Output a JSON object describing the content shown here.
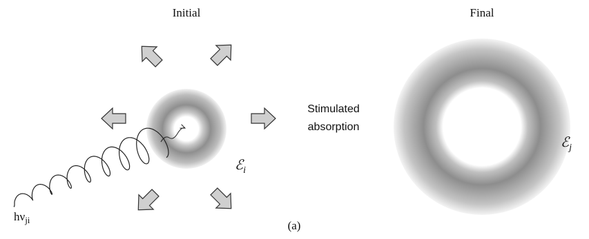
{
  "panels": {
    "initial": {
      "title": "Initial",
      "energy": {
        "symbol": "ℰ",
        "subscript": "i"
      }
    },
    "final": {
      "title": "Final",
      "energy": {
        "symbol": "ℰ",
        "subscript": "j"
      }
    }
  },
  "process": {
    "lines": [
      "Stimulated",
      "absorption"
    ]
  },
  "photon": {
    "symbol": "hν",
    "subscript": "ji"
  },
  "caption": "(a)"
}
